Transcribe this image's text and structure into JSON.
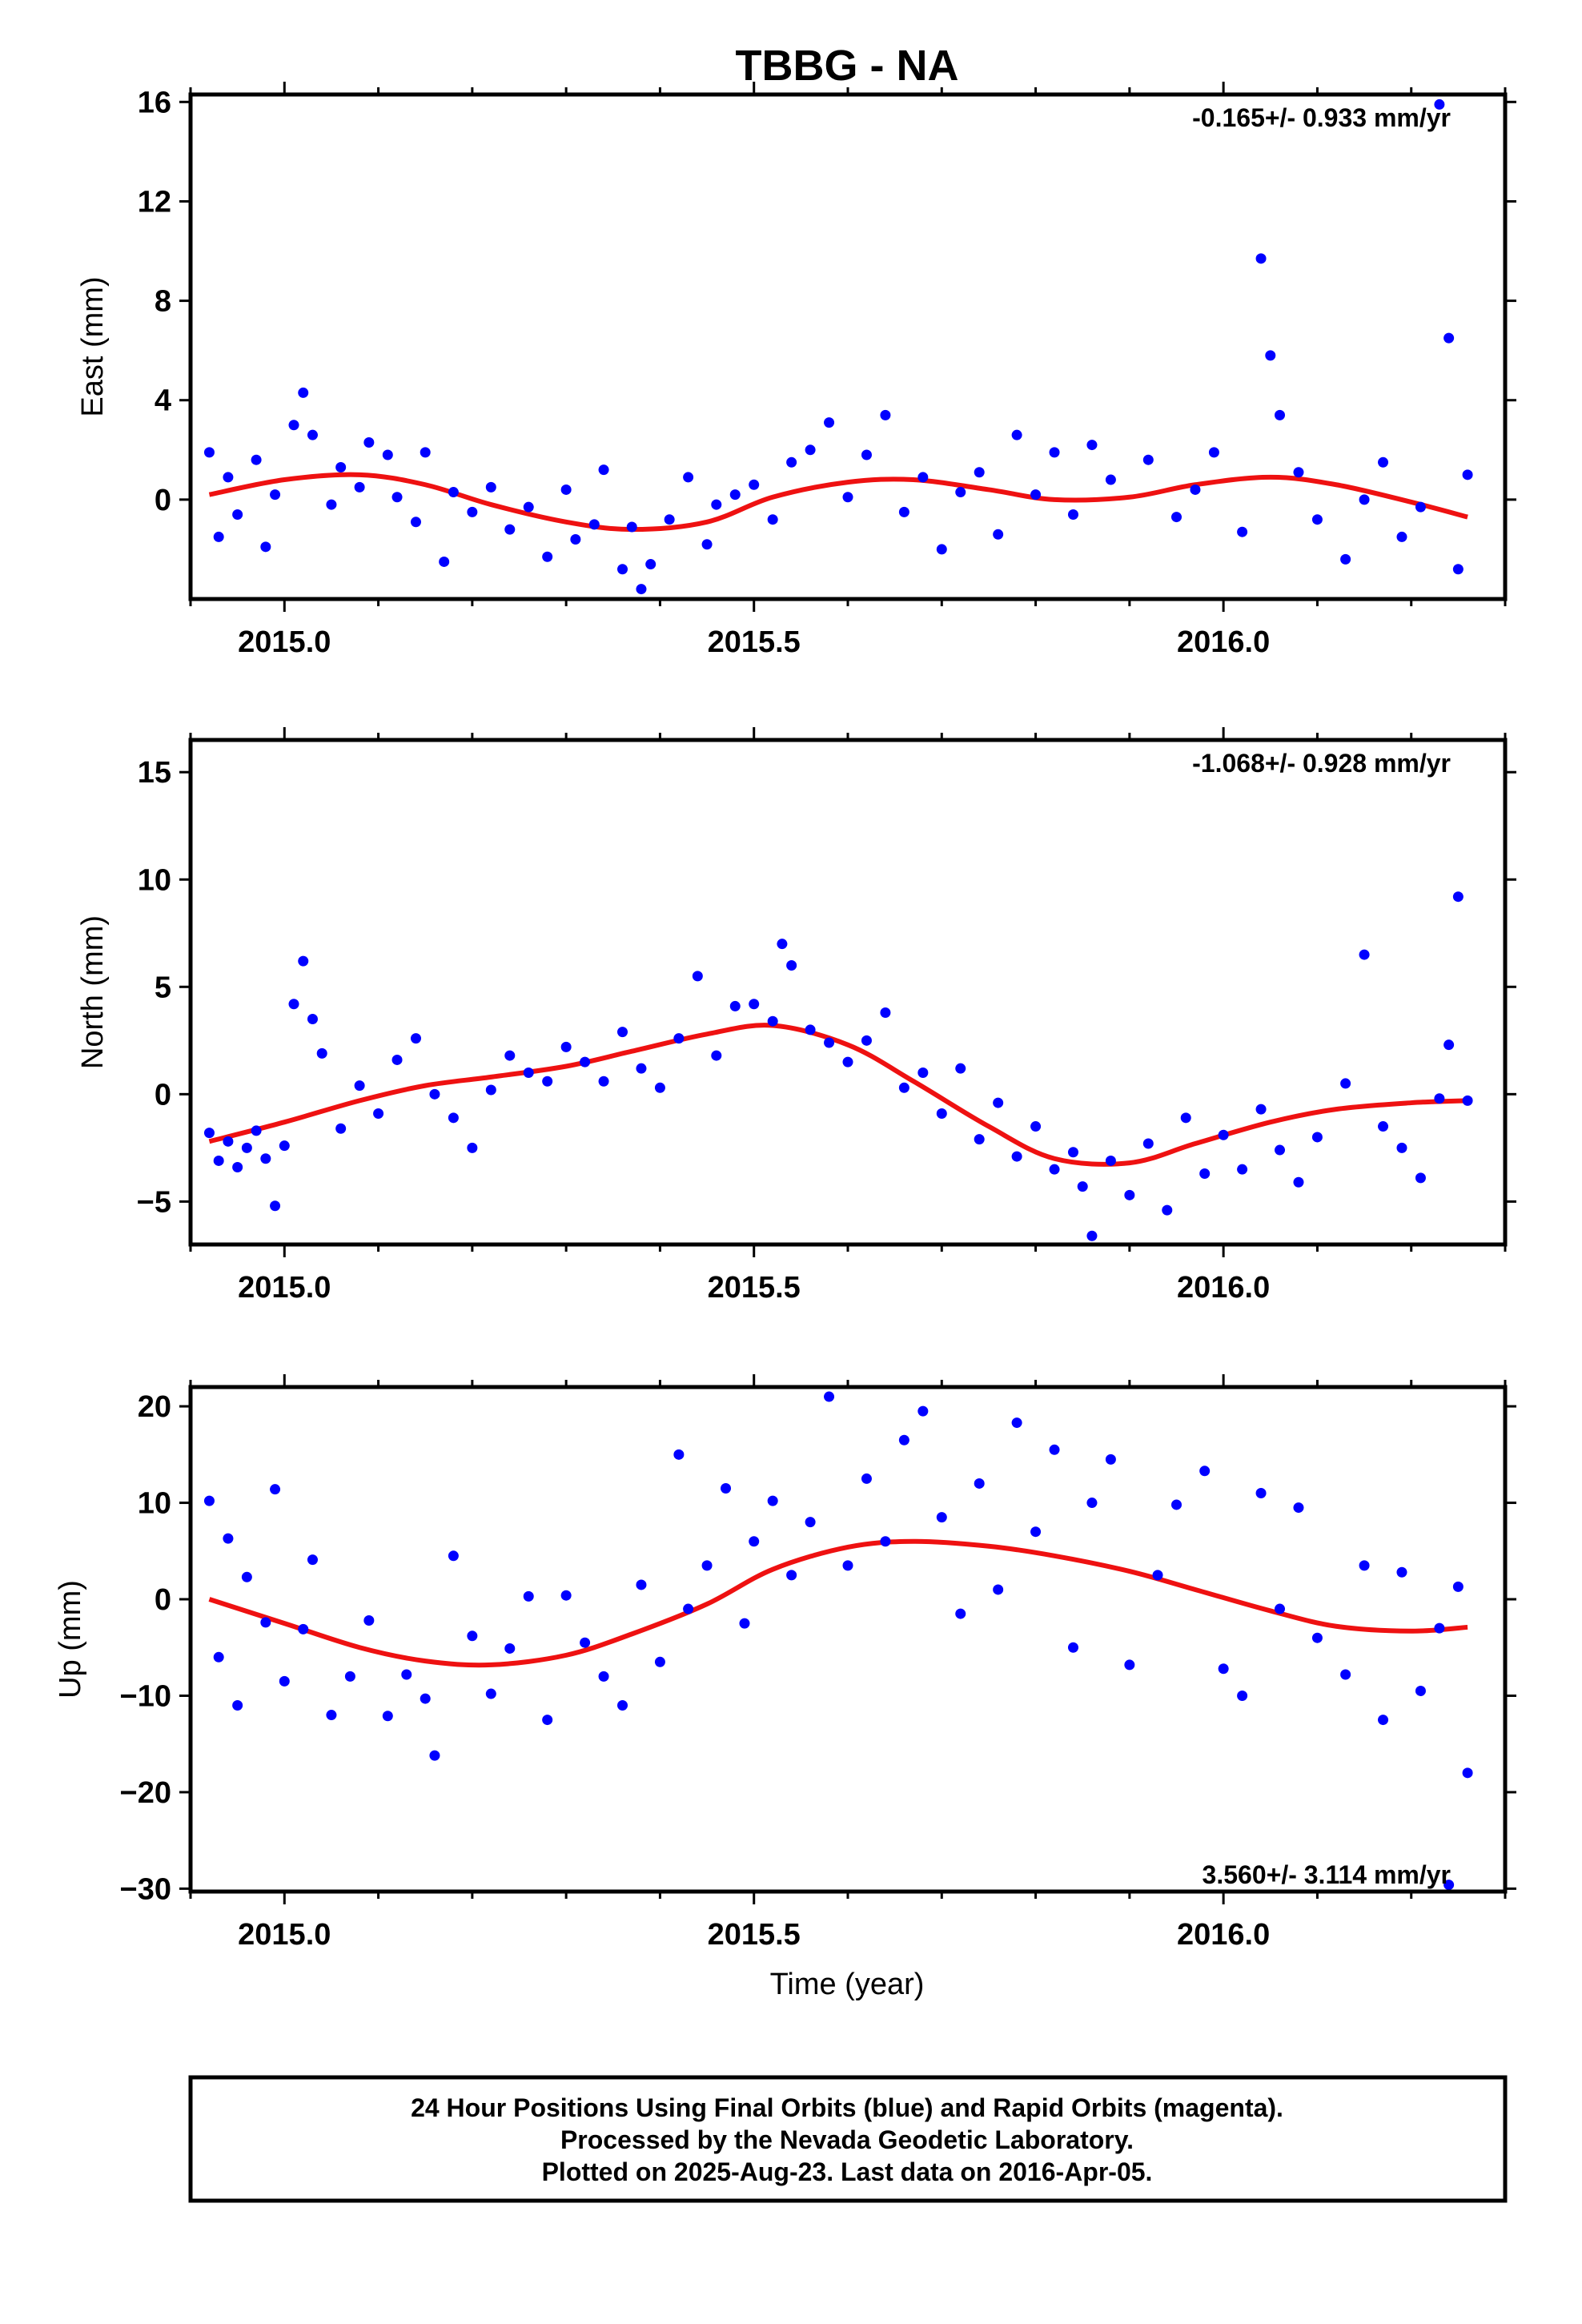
{
  "title": "TBBG - NA",
  "colors": {
    "points": "#0000ff",
    "fit": "#ee1111",
    "frame": "#000000"
  },
  "chart_data": [
    {
      "type": "scatter",
      "name": "east",
      "ylabel": "East (mm)",
      "xlabel": "",
      "xlim": [
        2014.9,
        2016.3
      ],
      "ylim": [
        -4,
        16.3
      ],
      "xticks": [
        "2015.0",
        "2015.5",
        "2016.0"
      ],
      "yticks": [
        "0",
        "4",
        "8",
        "12",
        "16"
      ],
      "ytick_values": [
        0,
        4,
        8,
        12,
        16
      ],
      "rate_label": "-0.165+/- 0.933 mm/yr",
      "fit": {
        "x": [
          2014.92,
          2015.0,
          2015.08,
          2015.15,
          2015.22,
          2015.3,
          2015.37,
          2015.45,
          2015.52,
          2015.6,
          2015.67,
          2015.75,
          2015.82,
          2015.9,
          2015.97,
          2016.05,
          2016.12,
          2016.2,
          2016.26
        ],
        "y": [
          0.2,
          0.8,
          1.0,
          0.6,
          -0.2,
          -0.9,
          -1.2,
          -0.9,
          0.1,
          0.7,
          0.8,
          0.4,
          0.0,
          0.1,
          0.6,
          0.9,
          0.6,
          -0.1,
          -0.7
        ]
      },
      "points": {
        "x": [
          2014.92,
          2014.93,
          2014.94,
          2014.95,
          2014.97,
          2014.98,
          2014.99,
          2015.01,
          2015.02,
          2015.03,
          2015.05,
          2015.06,
          2015.08,
          2015.09,
          2015.11,
          2015.12,
          2015.14,
          2015.15,
          2015.17,
          2015.18,
          2015.2,
          2015.22,
          2015.24,
          2015.26,
          2015.28,
          2015.3,
          2015.31,
          2015.33,
          2015.34,
          2015.36,
          2015.37,
          2015.38,
          2015.39,
          2015.41,
          2015.43,
          2015.45,
          2015.46,
          2015.48,
          2015.5,
          2015.52,
          2015.54,
          2015.56,
          2015.58,
          2015.6,
          2015.62,
          2015.64,
          2015.66,
          2015.68,
          2015.7,
          2015.72,
          2015.74,
          2015.76,
          2015.78,
          2015.8,
          2015.82,
          2015.84,
          2015.86,
          2015.88,
          2015.92,
          2015.95,
          2015.97,
          2015.99,
          2016.02,
          2016.04,
          2016.05,
          2016.06,
          2016.08,
          2016.1,
          2016.13,
          2016.15,
          2016.17,
          2016.19,
          2016.21,
          2016.23,
          2016.24,
          2016.25,
          2016.26
        ],
        "y": [
          1.9,
          -1.5,
          0.9,
          -0.6,
          1.6,
          -1.9,
          0.2,
          3.0,
          4.3,
          2.6,
          -0.2,
          1.3,
          0.5,
          2.3,
          1.8,
          0.1,
          -0.9,
          1.9,
          -2.5,
          0.3,
          -0.5,
          0.5,
          -1.2,
          -0.3,
          -2.3,
          0.4,
          -1.6,
          -1.0,
          1.2,
          -2.8,
          -1.1,
          -3.6,
          -2.6,
          -0.8,
          0.9,
          -1.8,
          -0.2,
          0.2,
          0.6,
          -0.8,
          1.5,
          2.0,
          3.1,
          0.1,
          1.8,
          3.4,
          -0.5,
          0.9,
          -2.0,
          0.3,
          1.1,
          -1.4,
          2.6,
          0.2,
          1.9,
          -0.6,
          2.2,
          0.8,
          1.6,
          -0.7,
          0.4,
          1.9,
          -1.3,
          9.7,
          5.8,
          3.4,
          1.1,
          -0.8,
          -2.4,
          0.0,
          1.5,
          -1.5,
          -0.3,
          15.9,
          6.5,
          -2.8,
          1.0
        ]
      }
    },
    {
      "type": "scatter",
      "name": "north",
      "ylabel": "North (mm)",
      "xlabel": "",
      "xlim": [
        2014.9,
        2016.3
      ],
      "ylim": [
        -7,
        16.5
      ],
      "xticks": [
        "2015.0",
        "2015.5",
        "2016.0"
      ],
      "yticks": [
        "15",
        "10",
        "5",
        "0",
        "−5"
      ],
      "ytick_values": [
        15,
        10,
        5,
        0,
        -5
      ],
      "rate_label": "-1.068+/- 0.928 mm/yr",
      "fit": {
        "x": [
          2014.92,
          2015.0,
          2015.08,
          2015.15,
          2015.22,
          2015.3,
          2015.37,
          2015.45,
          2015.52,
          2015.6,
          2015.67,
          2015.75,
          2015.82,
          2015.9,
          2015.97,
          2016.05,
          2016.12,
          2016.2,
          2016.26
        ],
        "y": [
          -2.2,
          -1.3,
          -0.3,
          0.4,
          0.8,
          1.3,
          2.0,
          2.8,
          3.2,
          2.3,
          0.6,
          -1.5,
          -3.0,
          -3.2,
          -2.3,
          -1.3,
          -0.7,
          -0.4,
          -0.3
        ]
      },
      "points": {
        "x": [
          2014.92,
          2014.93,
          2014.94,
          2014.95,
          2014.96,
          2014.97,
          2014.98,
          2014.99,
          2015.0,
          2015.01,
          2015.02,
          2015.03,
          2015.04,
          2015.06,
          2015.08,
          2015.1,
          2015.12,
          2015.14,
          2015.16,
          2015.18,
          2015.2,
          2015.22,
          2015.24,
          2015.26,
          2015.28,
          2015.3,
          2015.32,
          2015.34,
          2015.36,
          2015.38,
          2015.4,
          2015.42,
          2015.44,
          2015.46,
          2015.48,
          2015.5,
          2015.52,
          2015.53,
          2015.54,
          2015.56,
          2015.58,
          2015.6,
          2015.62,
          2015.64,
          2015.66,
          2015.68,
          2015.7,
          2015.72,
          2015.74,
          2015.76,
          2015.78,
          2015.8,
          2015.82,
          2015.84,
          2015.85,
          2015.86,
          2015.88,
          2015.9,
          2015.92,
          2015.94,
          2015.96,
          2015.98,
          2016.0,
          2016.02,
          2016.04,
          2016.06,
          2016.08,
          2016.1,
          2016.13,
          2016.15,
          2016.17,
          2016.19,
          2016.21,
          2016.23,
          2016.24,
          2016.25,
          2016.26
        ],
        "y": [
          -1.8,
          -3.1,
          -2.2,
          -3.4,
          -2.5,
          -1.7,
          -3.0,
          -5.2,
          -2.4,
          4.2,
          6.2,
          3.5,
          1.9,
          -1.6,
          0.4,
          -0.9,
          1.6,
          2.6,
          0.0,
          -1.1,
          -2.5,
          0.2,
          1.8,
          1.0,
          0.6,
          2.2,
          1.5,
          0.6,
          2.9,
          1.2,
          0.3,
          2.6,
          5.5,
          1.8,
          4.1,
          4.2,
          3.4,
          7.0,
          6.0,
          3.0,
          2.4,
          1.5,
          2.5,
          3.8,
          0.3,
          1.0,
          -0.9,
          1.2,
          -2.1,
          -0.4,
          -2.9,
          -1.5,
          -3.5,
          -2.7,
          -4.3,
          -6.6,
          -3.1,
          -4.7,
          -2.3,
          -5.4,
          -1.1,
          -3.7,
          -1.9,
          -3.5,
          -0.7,
          -2.6,
          -4.1,
          -2.0,
          0.5,
          6.5,
          -1.5,
          -2.5,
          -3.9,
          -0.2,
          2.3,
          9.2,
          -0.3
        ]
      }
    },
    {
      "type": "scatter",
      "name": "up",
      "ylabel": "Up (mm)",
      "xlabel": "Time (year)",
      "xlim": [
        2014.9,
        2016.3
      ],
      "ylim": [
        -30.3,
        22
      ],
      "xticks": [
        "2015.0",
        "2015.5",
        "2016.0"
      ],
      "yticks": [
        "20",
        "10",
        "0",
        "−10",
        "−20",
        "−30"
      ],
      "ytick_values": [
        20,
        10,
        0,
        -10,
        -20,
        -30
      ],
      "rate_label": "3.560+/- 3.114 mm/yr",
      "fit": {
        "x": [
          2014.92,
          2015.0,
          2015.08,
          2015.15,
          2015.22,
          2015.3,
          2015.37,
          2015.45,
          2015.52,
          2015.6,
          2015.67,
          2015.75,
          2015.82,
          2015.9,
          2015.97,
          2016.05,
          2016.12,
          2016.2,
          2016.26
        ],
        "y": [
          0.0,
          -2.5,
          -5.0,
          -6.4,
          -6.8,
          -5.8,
          -3.6,
          -0.5,
          3.1,
          5.4,
          6.0,
          5.5,
          4.5,
          2.9,
          1.0,
          -1.2,
          -2.8,
          -3.3,
          -2.9
        ]
      },
      "points": {
        "x": [
          2014.92,
          2014.93,
          2014.94,
          2014.95,
          2014.96,
          2014.98,
          2014.99,
          2015.0,
          2015.02,
          2015.03,
          2015.05,
          2015.07,
          2015.09,
          2015.11,
          2015.13,
          2015.15,
          2015.16,
          2015.18,
          2015.2,
          2015.22,
          2015.24,
          2015.26,
          2015.28,
          2015.3,
          2015.32,
          2015.34,
          2015.36,
          2015.38,
          2015.4,
          2015.42,
          2015.43,
          2015.45,
          2015.47,
          2015.49,
          2015.5,
          2015.52,
          2015.54,
          2015.56,
          2015.58,
          2015.6,
          2015.62,
          2015.64,
          2015.66,
          2015.68,
          2015.7,
          2015.72,
          2015.74,
          2015.76,
          2015.78,
          2015.8,
          2015.82,
          2015.84,
          2015.86,
          2015.88,
          2015.9,
          2015.93,
          2015.95,
          2015.98,
          2016.0,
          2016.02,
          2016.04,
          2016.06,
          2016.08,
          2016.1,
          2016.13,
          2016.15,
          2016.17,
          2016.19,
          2016.21,
          2016.23,
          2016.24,
          2016.25,
          2016.26
        ],
        "y": [
          10.2,
          -6.0,
          6.3,
          -11.0,
          2.3,
          -2.4,
          11.4,
          -8.5,
          -3.1,
          4.1,
          -12.0,
          -8.0,
          -2.2,
          -12.1,
          -7.8,
          -10.3,
          -16.2,
          4.5,
          -3.8,
          -9.8,
          -5.1,
          0.3,
          -12.5,
          0.4,
          -4.5,
          -8.0,
          -11.0,
          1.5,
          -6.5,
          15.0,
          -1.0,
          3.5,
          11.5,
          -2.5,
          6.0,
          10.2,
          2.5,
          8.0,
          21.0,
          3.5,
          12.5,
          6.0,
          16.5,
          19.5,
          8.5,
          -1.5,
          12.0,
          1.0,
          18.3,
          7.0,
          15.5,
          -5.0,
          10.0,
          14.5,
          -6.8,
          2.5,
          9.8,
          13.3,
          -7.2,
          -10.0,
          11.0,
          -1.0,
          9.5,
          -4.0,
          -7.8,
          3.5,
          -12.5,
          2.8,
          -9.5,
          -3.0,
          -29.6,
          1.3,
          -18.0
        ]
      }
    }
  ],
  "footer": {
    "line1": "24 Hour Positions Using Final Orbits (blue) and Rapid Orbits (magenta).",
    "line2": "Processed by the Nevada Geodetic Laboratory.",
    "line3": "Plotted on 2025-Aug-23. Last data on 2016-Apr-05."
  }
}
